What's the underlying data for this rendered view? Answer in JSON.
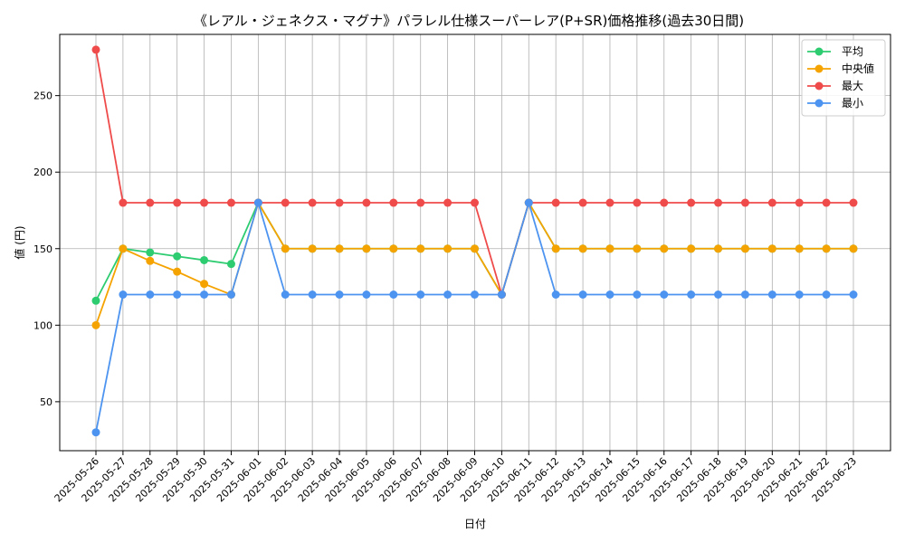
{
  "chart_data": {
    "type": "line",
    "title": "《レアル・ジェネクス・マグナ》パラレル仕様スーパーレア(P+SR)価格推移(過去30日間)",
    "xlabel": "日付",
    "ylabel": "値 (円)",
    "ylim": [
      18,
      290
    ],
    "yticks": [
      50,
      100,
      150,
      200,
      250
    ],
    "grid": true,
    "legend_position": "top-right",
    "categories": [
      "2025-05-26",
      "2025-05-27",
      "2025-05-28",
      "2025-05-29",
      "2025-05-30",
      "2025-05-31",
      "2025-06-01",
      "2025-06-02",
      "2025-06-03",
      "2025-06-04",
      "2025-06-05",
      "2025-06-06",
      "2025-06-07",
      "2025-06-08",
      "2025-06-09",
      "2025-06-10",
      "2025-06-11",
      "2025-06-12",
      "2025-06-13",
      "2025-06-14",
      "2025-06-15",
      "2025-06-16",
      "2025-06-17",
      "2025-06-18",
      "2025-06-19",
      "2025-06-20",
      "2025-06-21",
      "2025-06-22",
      "2025-06-23"
    ],
    "series": [
      {
        "name": "平均",
        "color": "#2ecc71",
        "values": [
          116,
          150,
          147.5,
          145,
          142.5,
          140,
          180,
          150,
          150,
          150,
          150,
          150,
          150,
          150,
          150,
          120,
          180,
          150,
          150,
          150,
          150,
          150,
          150,
          150,
          150,
          150,
          150,
          150,
          150
        ]
      },
      {
        "name": "中央値",
        "color": "#f5a300",
        "values": [
          100,
          150,
          142,
          135,
          127,
          120,
          180,
          150,
          150,
          150,
          150,
          150,
          150,
          150,
          150,
          120,
          180,
          150,
          150,
          150,
          150,
          150,
          150,
          150,
          150,
          150,
          150,
          150,
          150
        ]
      },
      {
        "name": "最大",
        "color": "#ef4b4b",
        "values": [
          280,
          180,
          180,
          180,
          180,
          180,
          180,
          180,
          180,
          180,
          180,
          180,
          180,
          180,
          180,
          120,
          180,
          180,
          180,
          180,
          180,
          180,
          180,
          180,
          180,
          180,
          180,
          180,
          180
        ]
      },
      {
        "name": "最小",
        "color": "#4d94f0",
        "values": [
          30,
          120,
          120,
          120,
          120,
          120,
          180,
          120,
          120,
          120,
          120,
          120,
          120,
          120,
          120,
          120,
          180,
          120,
          120,
          120,
          120,
          120,
          120,
          120,
          120,
          120,
          120,
          120,
          120
        ]
      }
    ]
  }
}
